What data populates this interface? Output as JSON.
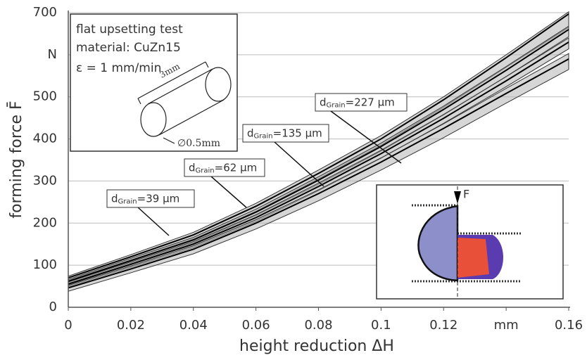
{
  "chart_data": {
    "type": "line",
    "y_label": "forming force F̄",
    "x_label": "height reduction ΔH",
    "xlim": [
      0,
      0.16
    ],
    "xticks": [
      0,
      0.02,
      0.04,
      0.06,
      0.08,
      0.1,
      0.12,
      {
        "value": 0.14,
        "label": "mm"
      },
      0.16
    ],
    "ylim": [
      0,
      700
    ],
    "yticks": [
      0,
      100,
      200,
      300,
      400,
      500,
      {
        "value": 600,
        "label": "N"
      },
      700
    ],
    "grid": true,
    "x": [
      0,
      0.02,
      0.04,
      0.06,
      0.08,
      0.1,
      0.12,
      0.14,
      0.16
    ],
    "label_symbol": "d",
    "label_subscript": "Grain",
    "series": [
      {
        "name": "=227 µm",
        "color": "#000000",
        "values": [
          70,
          120,
          172,
          240,
          318,
          400,
          493,
          593,
          697
        ],
        "upper": [
          74,
          125,
          178,
          247,
          326,
          408,
          500,
          600,
          702
        ],
        "lower": [
          63,
          112,
          162,
          228,
          305,
          385,
          475,
          570,
          665
        ]
      },
      {
        "name": "=135 µm",
        "color": "#000000",
        "values": [
          62,
          111,
          160,
          226,
          302,
          382,
          470,
          563,
          660
        ],
        "upper": [
          66,
          116,
          166,
          233,
          310,
          390,
          478,
          572,
          668
        ],
        "lower": [
          57,
          105,
          153,
          218,
          292,
          371,
          457,
          548,
          643
        ]
      },
      {
        "name": "=62 µm",
        "color": "#000000",
        "values": [
          55,
          102,
          150,
          213,
          287,
          365,
          449,
          538,
          630
        ],
        "upper": [
          60,
          108,
          156,
          220,
          295,
          373,
          458,
          548,
          640
        ],
        "lower": [
          49,
          95,
          142,
          204,
          277,
          354,
          437,
          524,
          614
        ]
      },
      {
        "name": "=39 µm",
        "color": "#000000",
        "values": [
          46,
          91,
          138,
          200,
          270,
          345,
          425,
          508,
          590
        ],
        "upper": [
          52,
          98,
          146,
          208,
          279,
          355,
          436,
          520,
          603
        ],
        "lower": [
          38,
          82,
          127,
          186,
          253,
          326,
          403,
          485,
          565
        ]
      }
    ],
    "inset_text": [
      "flat upsetting test",
      "material: CuZn15",
      "ε = 1 mm/min",
      "3mm",
      "∅0.5mm"
    ],
    "force_label": "F"
  }
}
